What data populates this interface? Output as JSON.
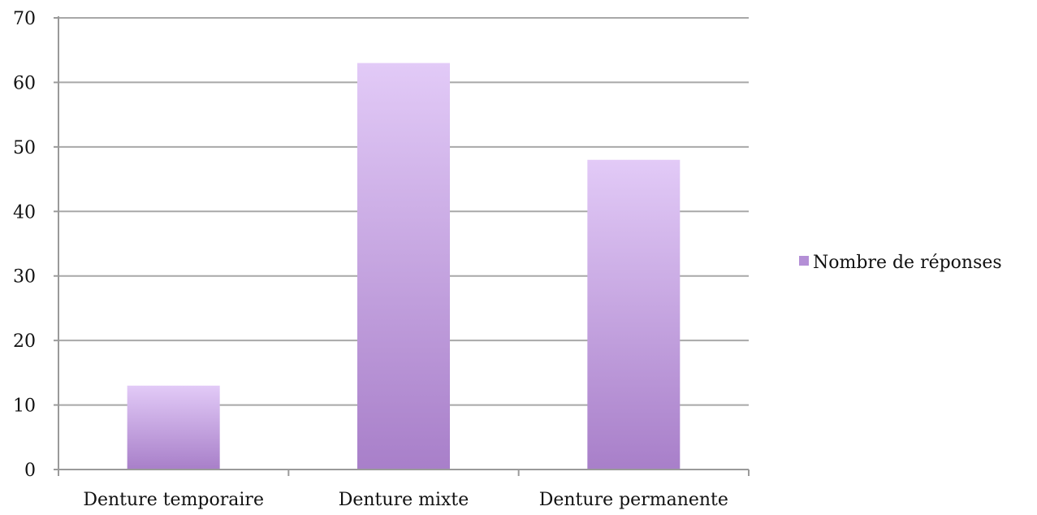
{
  "chart_data": {
    "type": "bar",
    "categories": [
      "Denture temporaire",
      "Denture mixte",
      "Denture permanente"
    ],
    "series": [
      {
        "name": "Nombre de réponses",
        "values": [
          13,
          63,
          48
        ]
      }
    ],
    "ylim": [
      0,
      70
    ],
    "yticks": [
      0,
      10,
      20,
      30,
      40,
      50,
      60,
      70
    ],
    "grid": true,
    "legend_position": "right",
    "colors": {
      "bar_top": "#e2caf7",
      "bar_bottom": "#a87fc9",
      "legend_swatch": "#b48fd6"
    }
  }
}
